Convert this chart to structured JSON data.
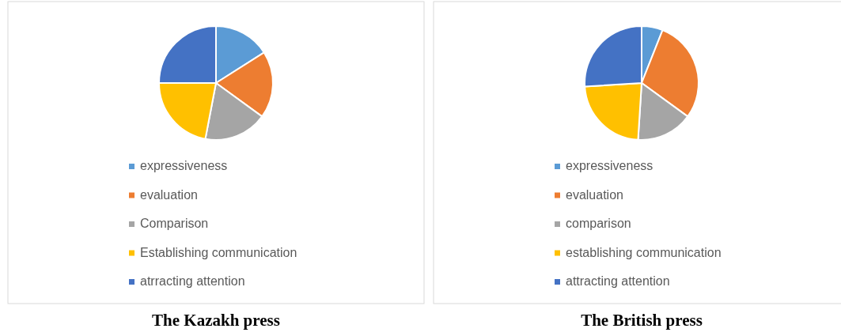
{
  "chart_data": [
    {
      "type": "pie",
      "title": "The Kazakh press",
      "categories": [
        "expressiveness",
        "evaluation",
        "Comparison",
        "Establishing communication",
        "atrracting attention"
      ],
      "values": [
        16,
        19,
        18,
        22,
        25
      ],
      "colors": [
        "#5b9bd5",
        "#ed7d31",
        "#a5a5a5",
        "#ffc000",
        "#4472c4"
      ],
      "legend": "bottom"
    },
    {
      "type": "pie",
      "title": "The British press",
      "categories": [
        "expressiveness",
        "evaluation",
        "comparison",
        "establishing communication",
        "attracting attention"
      ],
      "values": [
        6,
        29,
        16,
        23,
        26
      ],
      "colors": [
        "#5b9bd5",
        "#ed7d31",
        "#a5a5a5",
        "#ffc000",
        "#4472c4"
      ],
      "legend": "bottom"
    }
  ]
}
